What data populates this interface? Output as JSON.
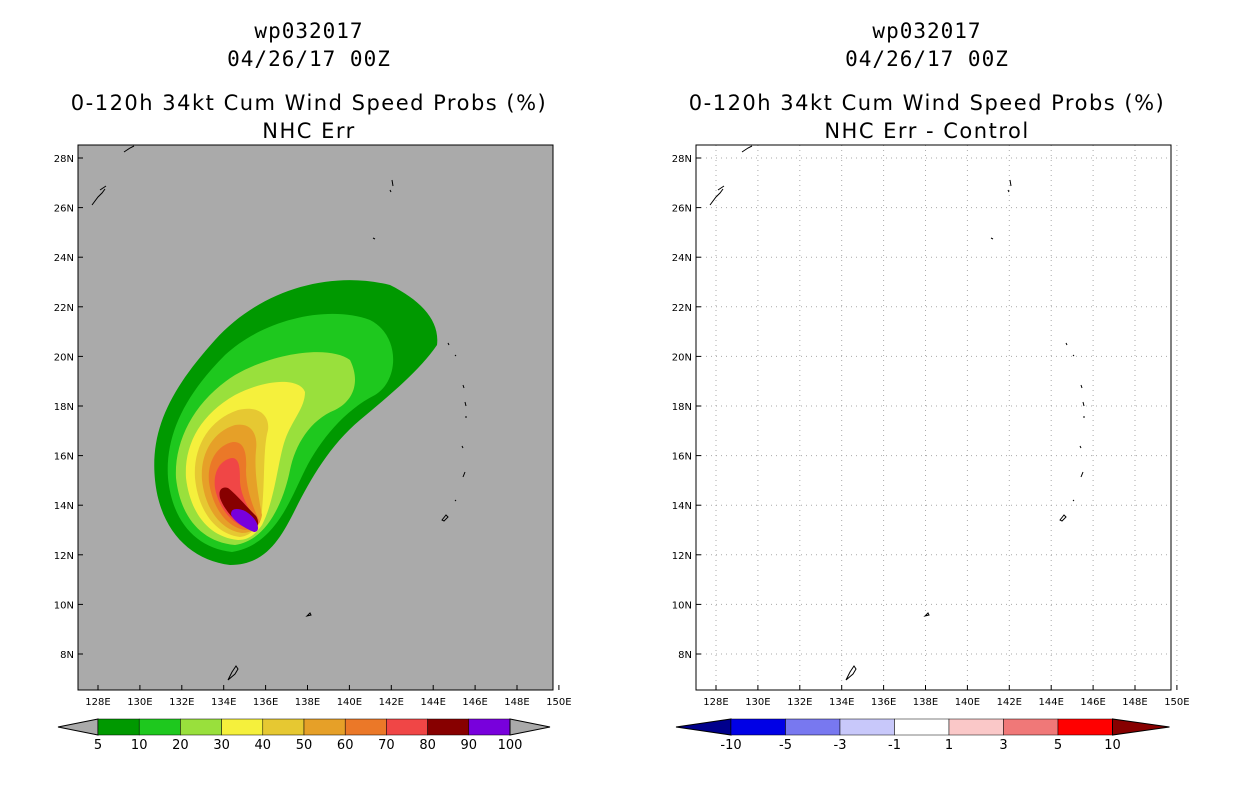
{
  "left": {
    "title1": "wp032017",
    "title2": "04/26/17 00Z",
    "title3": "0-120h 34kt Cum Wind Speed Probs (%)",
    "title4": "NHC Err",
    "colorbar": {
      "labels": [
        "5",
        "10",
        "20",
        "30",
        "40",
        "50",
        "60",
        "70",
        "80",
        "90",
        "100"
      ],
      "colors": [
        "#009900",
        "#1ec81e",
        "#99e03c",
        "#f5f03c",
        "#e6c832",
        "#e6a028",
        "#eb7828",
        "#f04646",
        "#870000",
        "#7800dc"
      ]
    }
  },
  "right": {
    "title1": "wp032017",
    "title2": "04/26/17 00Z",
    "title3": "0-120h 34kt Cum Wind Speed Probs (%)",
    "title4": "NHC Err - Control",
    "colorbar": {
      "labels": [
        "-10",
        "-5",
        "-3",
        "-1",
        "1",
        "3",
        "5",
        "10"
      ],
      "colors": [
        "#0000e6",
        "#7878f0",
        "#c8c8fa",
        "#ffffff",
        "#fac8c8",
        "#f07878",
        "#ff0000"
      ],
      "end_colors": [
        "#00008c",
        "#870000"
      ]
    }
  },
  "map": {
    "lon_labels": [
      "128E",
      "130E",
      "132E",
      "134E",
      "136E",
      "138E",
      "140E",
      "142E",
      "144E",
      "146E",
      "148E",
      "150E"
    ],
    "lat_labels": [
      "28N",
      "26N",
      "24N",
      "22N",
      "20N",
      "18N",
      "16N",
      "14N",
      "12N",
      "10N",
      "8N"
    ],
    "background": "#aaaaaa"
  }
}
